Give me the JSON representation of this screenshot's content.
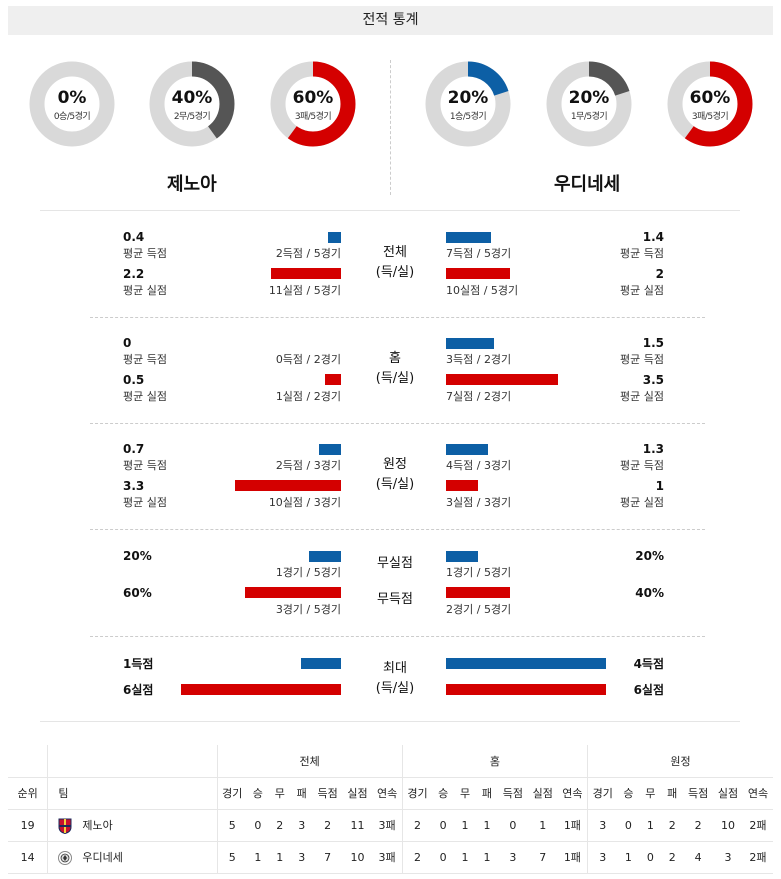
{
  "header": {
    "title": "전적 통계"
  },
  "donuts": {
    "home": [
      {
        "pct": "0%",
        "sub": "0승/5경기",
        "fraction": 0,
        "color": "#0d5fa5"
      },
      {
        "pct": "40%",
        "sub": "2무/5경기",
        "fraction": 0.4,
        "color": "#555555"
      },
      {
        "pct": "60%",
        "sub": "3패/5경기",
        "fraction": 0.6,
        "color": "#d40000"
      }
    ],
    "away": [
      {
        "pct": "20%",
        "sub": "1승/5경기",
        "fraction": 0.2,
        "color": "#0d5fa5"
      },
      {
        "pct": "20%",
        "sub": "1무/5경기",
        "fraction": 0.2,
        "color": "#555555"
      },
      {
        "pct": "60%",
        "sub": "3패/5경기",
        "fraction": 0.6,
        "color": "#d40000"
      }
    ]
  },
  "teams": {
    "home": "제노아",
    "away": "우디네세"
  },
  "sections": {
    "overall": {
      "center_line1": "전체",
      "center_line2": "(득/실)",
      "home": {
        "for_val": "0.4",
        "for_lbl": "평균 득점",
        "for_cap": "2득점 / 5경기",
        "for_fraction": 0.08,
        "ag_val": "2.2",
        "ag_lbl": "평균 실점",
        "ag_cap": "11실점 / 5경기",
        "ag_fraction": 0.44
      },
      "away": {
        "for_val": "1.4",
        "for_lbl": "평균 득점",
        "for_cap": "7득점 / 5경기",
        "for_fraction": 0.28,
        "ag_val": "2",
        "ag_lbl": "평균 실점",
        "ag_cap": "10실점 / 5경기",
        "ag_fraction": 0.4
      }
    },
    "home_games": {
      "center_line1": "홈",
      "center_line2": "(득/실)",
      "home": {
        "for_val": "0",
        "for_lbl": "평균 득점",
        "for_cap": "0득점 / 2경기",
        "for_fraction": 0,
        "ag_val": "0.5",
        "ag_lbl": "평균 실점",
        "ag_cap": "1실점 / 2경기",
        "ag_fraction": 0.1
      },
      "away": {
        "for_val": "1.5",
        "for_lbl": "평균 득점",
        "for_cap": "3득점 / 2경기",
        "for_fraction": 0.3,
        "ag_val": "3.5",
        "ag_lbl": "평균 실점",
        "ag_cap": "7실점 / 2경기",
        "ag_fraction": 0.7
      }
    },
    "away_games": {
      "center_line1": "원정",
      "center_line2": "(득/실)",
      "home": {
        "for_val": "0.7",
        "for_lbl": "평균 득점",
        "for_cap": "2득점 / 3경기",
        "for_fraction": 0.14,
        "ag_val": "3.3",
        "ag_lbl": "평균 실점",
        "ag_cap": "10실점 / 3경기",
        "ag_fraction": 0.66
      },
      "away": {
        "for_val": "1.3",
        "for_lbl": "평균 득점",
        "for_cap": "4득점 / 3경기",
        "for_fraction": 0.26,
        "ag_val": "1",
        "ag_lbl": "평균 실점",
        "ag_cap": "3실점 / 3경기",
        "ag_fraction": 0.2
      }
    },
    "clean": {
      "center_line1": "무실점",
      "center_line2": "무득점",
      "home": {
        "cs_val": "20%",
        "cs_cap": "1경기 / 5경기",
        "cs_fraction": 0.2,
        "ns_val": "60%",
        "ns_cap": "3경기 / 5경기",
        "ns_fraction": 0.6
      },
      "away": {
        "cs_val": "20%",
        "cs_cap": "1경기 / 5경기",
        "cs_fraction": 0.2,
        "ns_val": "40%",
        "ns_cap": "2경기 / 5경기",
        "ns_fraction": 0.4
      }
    },
    "max": {
      "center_line1": "최대",
      "center_line2": "(득/실)",
      "home": {
        "for_val": "1득점",
        "for_fraction": 0.25,
        "ag_val": "6실점",
        "ag_fraction": 1
      },
      "away": {
        "for_val": "4득점",
        "for_fraction": 1,
        "ag_val": "6실점",
        "ag_fraction": 1
      }
    }
  },
  "table": {
    "group_headers": [
      "전체",
      "홈",
      "원정"
    ],
    "col_rank": "순위",
    "col_team": "팀",
    "sub_headers": [
      "경기",
      "승",
      "무",
      "패",
      "득점",
      "실점",
      "연속"
    ],
    "rows": [
      {
        "rank": "19",
        "team": "제노아",
        "overall": [
          "5",
          "0",
          "2",
          "3",
          "2",
          "11",
          "3패"
        ],
        "home": [
          "2",
          "0",
          "1",
          "1",
          "0",
          "1",
          "1패"
        ],
        "away": [
          "3",
          "0",
          "1",
          "2",
          "2",
          "10",
          "2패"
        ]
      },
      {
        "rank": "14",
        "team": "우디네세",
        "overall": [
          "5",
          "1",
          "1",
          "3",
          "7",
          "10",
          "3패"
        ],
        "home": [
          "2",
          "0",
          "1",
          "1",
          "3",
          "7",
          "1패"
        ],
        "away": [
          "3",
          "1",
          "0",
          "2",
          "4",
          "3",
          "2패"
        ]
      }
    ]
  },
  "colors": {
    "blue": "#0d5fa5",
    "red": "#d40000",
    "gray": "#555555",
    "track": "#d9d9d9"
  }
}
